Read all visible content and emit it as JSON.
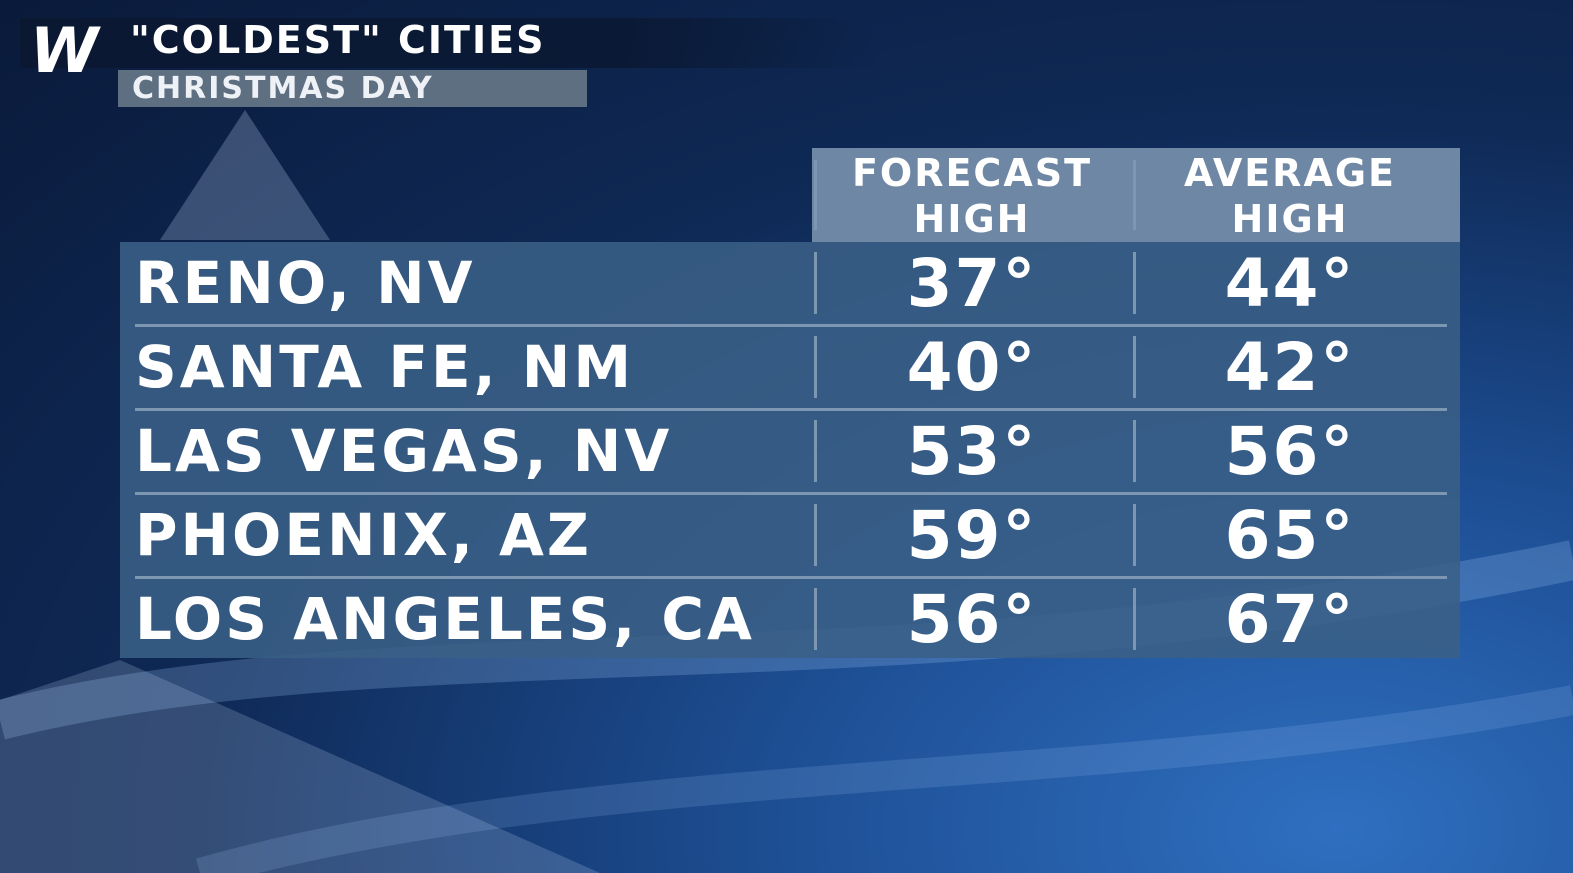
{
  "header": {
    "logo": "W",
    "title": "\"COLDEST\" CITIES",
    "subtitle": "CHRISTMAS DAY"
  },
  "table": {
    "columns": [
      "FORECAST HIGH",
      "AVERAGE HIGH"
    ],
    "rows": [
      [
        "RENO, NV",
        "37°",
        "44°"
      ],
      [
        "SANTA FE, NM",
        "40°",
        "42°"
      ],
      [
        "LAS VEGAS, NV",
        "53°",
        "56°"
      ],
      [
        "PHOENIX, AZ",
        "59°",
        "65°"
      ],
      [
        "LOS ANGELES, CA",
        "56°",
        "67°"
      ]
    ]
  }
}
